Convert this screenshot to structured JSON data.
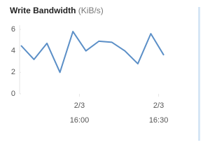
{
  "chart_data": {
    "type": "line",
    "title": "Write Bandwidth",
    "unit": "(KiB/s)",
    "categories": [
      null,
      null,
      null,
      null,
      null,
      null,
      null,
      null,
      null,
      null,
      null,
      null
    ],
    "series": [
      {
        "name": "Write",
        "color": "#5b8fc7",
        "values": [
          4.5,
          3.2,
          4.7,
          2.0,
          5.8,
          4.0,
          4.9,
          4.8,
          4.0,
          2.8,
          5.6,
          3.6
        ]
      }
    ],
    "xlim": [
      0,
      11
    ],
    "xticks": [
      {
        "value": 4.5,
        "label": "2/3",
        "sublabel": "16:00"
      },
      {
        "value": 10.6,
        "label": "2/3",
        "sublabel": "16:30"
      }
    ],
    "ylim": [
      0,
      6
    ],
    "yticks": [
      0,
      2,
      4,
      6
    ]
  }
}
